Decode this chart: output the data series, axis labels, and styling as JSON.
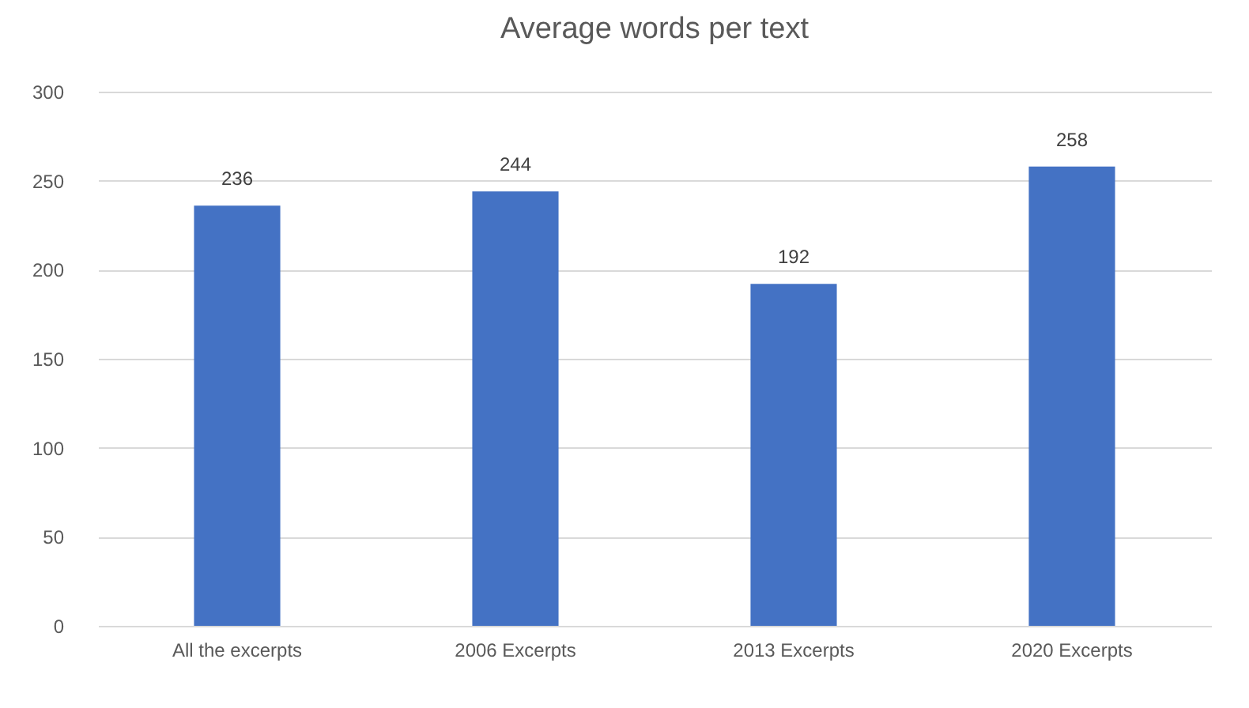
{
  "chart_data": {
    "type": "bar",
    "title": "Average words per text",
    "categories": [
      "All the excerpts",
      "2006 Excerpts",
      "2013 Excerpts",
      "2020 Excerpts"
    ],
    "values": [
      236,
      244,
      192,
      258
    ],
    "color": "#4472c4",
    "ylim": [
      0,
      300
    ],
    "yticks": [
      0,
      50,
      100,
      150,
      200,
      250,
      300
    ],
    "grid": "y",
    "data_labels": true
  }
}
